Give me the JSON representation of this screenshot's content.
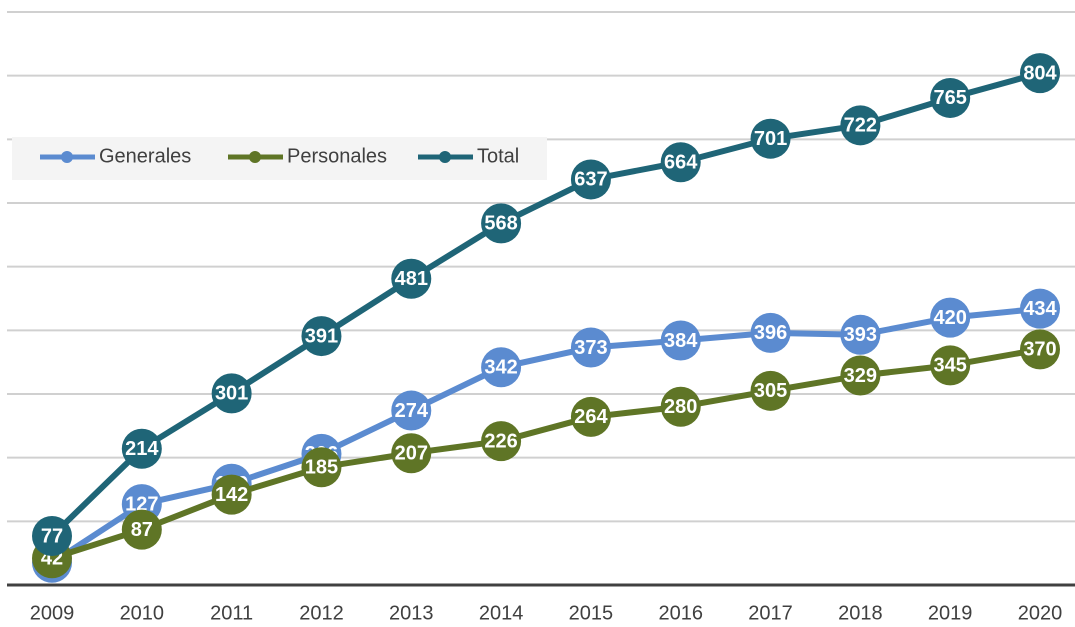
{
  "chart_data": {
    "type": "line",
    "categories": [
      "2009",
      "2010",
      "2011",
      "2012",
      "2013",
      "2014",
      "2015",
      "2016",
      "2017",
      "2018",
      "2019",
      "2020"
    ],
    "series": [
      {
        "name": "Generales",
        "color": "#5b8bd0",
        "values": [
          35,
          127,
          159,
          206,
          274,
          342,
          373,
          384,
          396,
          393,
          420,
          434
        ]
      },
      {
        "name": "Personales",
        "color": "#5f7526",
        "values": [
          42,
          87,
          142,
          185,
          207,
          226,
          264,
          280,
          305,
          329,
          345,
          370
        ]
      },
      {
        "name": "Total",
        "color": "#1f6577",
        "values": [
          77,
          214,
          301,
          391,
          481,
          568,
          637,
          664,
          701,
          722,
          765,
          804
        ]
      }
    ],
    "ylim": [
      0,
      900
    ],
    "yticks": [
      0,
      100,
      200,
      300,
      400,
      500,
      600,
      700,
      800,
      900
    ],
    "grid": true,
    "legend": "upper left"
  }
}
